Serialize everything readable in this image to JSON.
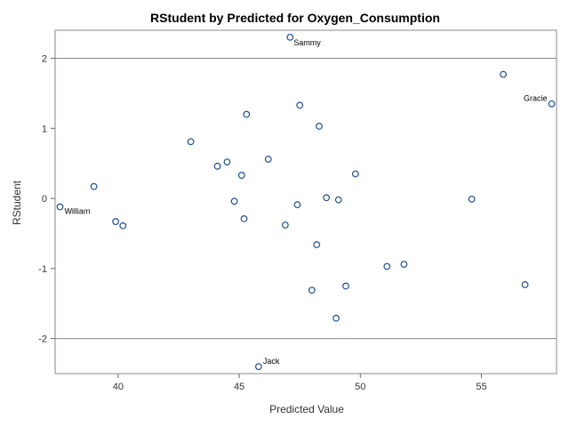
{
  "chart_data": {
    "type": "scatter",
    "title": "RStudent by Predicted for Oxygen_Consumption",
    "xlabel": "Predicted Value",
    "ylabel": "RStudent",
    "xlim": [
      37.4,
      58.1
    ],
    "ylim": [
      -2.5,
      2.4
    ],
    "xticks": [
      40,
      45,
      50,
      55
    ],
    "yticks": [
      -2,
      -1,
      0,
      1,
      2
    ],
    "reference_lines_y": [
      -2,
      2
    ],
    "marker_color": "#1f4e8c",
    "points": [
      {
        "x": 37.6,
        "y": -0.12,
        "label": "William"
      },
      {
        "x": 39.0,
        "y": 0.17
      },
      {
        "x": 39.9,
        "y": -0.33
      },
      {
        "x": 40.2,
        "y": -0.39
      },
      {
        "x": 43.0,
        "y": 0.81
      },
      {
        "x": 44.1,
        "y": 0.46
      },
      {
        "x": 44.5,
        "y": 0.52
      },
      {
        "x": 44.8,
        "y": -0.04
      },
      {
        "x": 45.1,
        "y": 0.33
      },
      {
        "x": 45.2,
        "y": -0.29
      },
      {
        "x": 45.3,
        "y": 1.2
      },
      {
        "x": 45.8,
        "y": -2.4,
        "label": "Jack"
      },
      {
        "x": 46.2,
        "y": 0.56
      },
      {
        "x": 46.9,
        "y": -0.38
      },
      {
        "x": 47.1,
        "y": 2.3,
        "label": "Sammy"
      },
      {
        "x": 47.4,
        "y": -0.09
      },
      {
        "x": 47.5,
        "y": 1.33
      },
      {
        "x": 48.0,
        "y": -1.31
      },
      {
        "x": 48.2,
        "y": -0.66
      },
      {
        "x": 48.3,
        "y": 1.03
      },
      {
        "x": 48.6,
        "y": 0.01
      },
      {
        "x": 49.0,
        "y": -1.71
      },
      {
        "x": 49.1,
        "y": -0.02
      },
      {
        "x": 49.4,
        "y": -1.25
      },
      {
        "x": 49.8,
        "y": 0.35
      },
      {
        "x": 51.1,
        "y": -0.97
      },
      {
        "x": 51.8,
        "y": -0.94
      },
      {
        "x": 54.6,
        "y": -0.01
      },
      {
        "x": 55.9,
        "y": 1.77
      },
      {
        "x": 56.8,
        "y": -1.23
      },
      {
        "x": 57.9,
        "y": 1.35,
        "label": "Gracie"
      }
    ]
  }
}
